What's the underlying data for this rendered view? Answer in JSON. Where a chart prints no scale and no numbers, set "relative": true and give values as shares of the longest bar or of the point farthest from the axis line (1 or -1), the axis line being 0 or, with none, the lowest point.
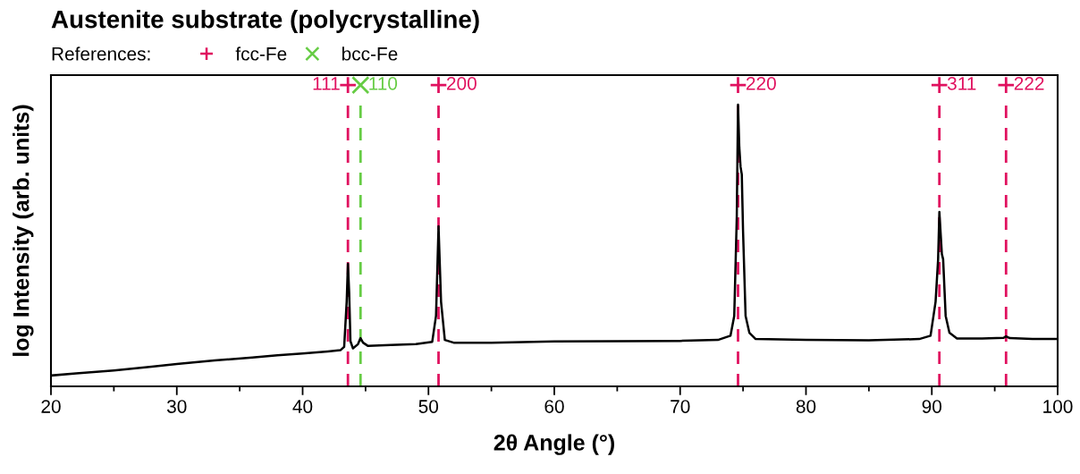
{
  "chart_data": {
    "type": "line",
    "title": "Austenite substrate (polycrystalline)",
    "xlabel": "2θ Angle (°)",
    "ylabel": "log Intensity (arb. units)",
    "relative": true,
    "xlim": [
      20,
      100
    ],
    "xticks": [
      20,
      30,
      40,
      50,
      60,
      70,
      80,
      90,
      100
    ],
    "tick_labels": "x",
    "grid": false,
    "legend": "top left",
    "legend_title": "References:",
    "series": [
      {
        "color": "#000000",
        "marker": "none",
        "line_style": "solid",
        "x": [
          20,
          22,
          25,
          28,
          30,
          33,
          36,
          38,
          40,
          42,
          43,
          43.3,
          43.5,
          43.6,
          43.7,
          43.8,
          44.0,
          44.4,
          44.6,
          44.8,
          45.2,
          47,
          49,
          50.3,
          50.6,
          50.8,
          51.0,
          51.3,
          52,
          55,
          60,
          65,
          70,
          73,
          74.0,
          74.3,
          74.5,
          74.6,
          74.7,
          74.8,
          74.9,
          75.0,
          75.2,
          75.5,
          76,
          80,
          85,
          89,
          89.9,
          90.3,
          90.5,
          90.6,
          90.8,
          90.9,
          91.1,
          91.4,
          92,
          94,
          95.7,
          95.9,
          96.2,
          98,
          100
        ],
        "values": [
          0.036,
          0.043,
          0.053,
          0.065,
          0.074,
          0.086,
          0.096,
          0.103,
          0.109,
          0.116,
          0.12,
          0.131,
          0.281,
          0.407,
          0.309,
          0.15,
          0.126,
          0.14,
          0.16,
          0.145,
          0.134,
          0.137,
          0.14,
          0.148,
          0.234,
          0.531,
          0.281,
          0.154,
          0.145,
          0.145,
          0.149,
          0.15,
          0.151,
          0.154,
          0.168,
          0.234,
          0.561,
          0.935,
          0.795,
          0.729,
          0.703,
          0.514,
          0.234,
          0.178,
          0.157,
          0.154,
          0.153,
          0.157,
          0.168,
          0.281,
          0.421,
          0.579,
          0.439,
          0.422,
          0.234,
          0.178,
          0.159,
          0.159,
          0.161,
          0.166,
          0.16,
          0.157,
          0.157
        ]
      },
      {
        "type": "scatter",
        "name": "fcc-Fe",
        "color": "#e0115f",
        "marker": "plus",
        "x": [
          43.6,
          50.8,
          74.6,
          90.6,
          95.9
        ],
        "values": [
          1,
          1,
          1,
          1,
          1
        ]
      },
      {
        "type": "scatter",
        "name": "bcc-Fe",
        "color": "#66cc44",
        "marker": "cross",
        "x": [
          44.6
        ],
        "values": [
          1
        ]
      }
    ],
    "ref_lines": [
      {
        "axis": "x",
        "value": 43.6,
        "color": "#e0115f",
        "line_style": "dashed"
      },
      {
        "axis": "x",
        "value": 44.6,
        "color": "#66cc44",
        "line_style": "dashed"
      },
      {
        "axis": "x",
        "value": 50.8,
        "color": "#e0115f",
        "line_style": "dashed"
      },
      {
        "axis": "x",
        "value": 74.6,
        "color": "#e0115f",
        "line_style": "dashed"
      },
      {
        "axis": "x",
        "value": 90.6,
        "color": "#e0115f",
        "line_style": "dashed"
      },
      {
        "axis": "x",
        "value": 95.9,
        "color": "#e0115f",
        "line_style": "dashed"
      }
    ],
    "annotations": [
      {
        "text": "111",
        "x": 43.6,
        "y": 1
      },
      {
        "text": "110",
        "x": 44.6,
        "y": 1
      },
      {
        "text": "200",
        "x": 50.8,
        "y": 1
      },
      {
        "text": "220",
        "x": 74.6,
        "y": 1
      },
      {
        "text": "311",
        "x": 90.6,
        "y": 1
      },
      {
        "text": "222",
        "x": 95.9,
        "y": 1
      }
    ]
  }
}
